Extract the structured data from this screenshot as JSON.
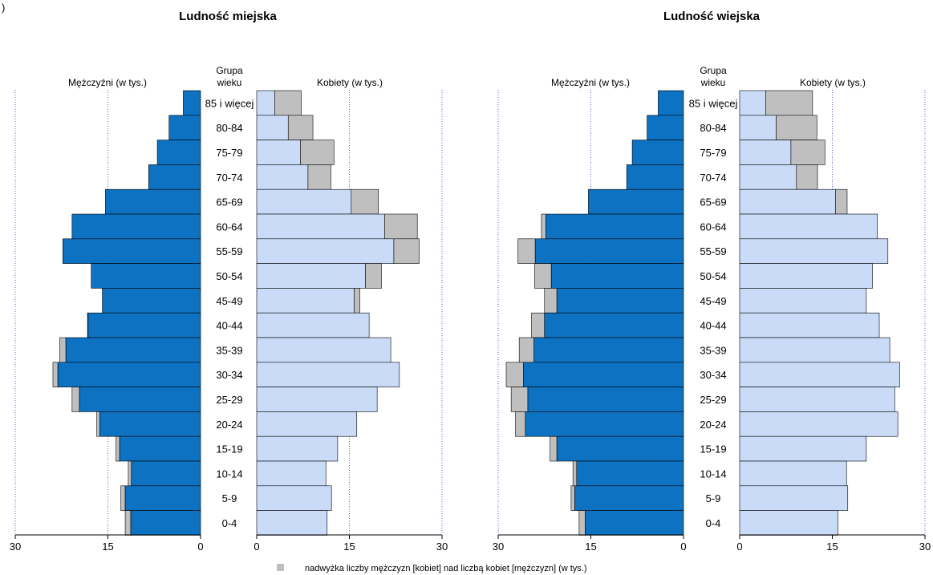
{
  "figure_label": ")",
  "chart_data": [
    {
      "type": "bar",
      "subtype": "population-pyramid",
      "title": "Ludność miejska",
      "age_header": "Grupa wieku",
      "left_label": "Mężczyźni (w tys.)",
      "right_label": "Kobiety (w tys.)",
      "ticks": [
        30,
        15,
        0
      ],
      "right_ticks": [
        0,
        15,
        30
      ],
      "xlim": [
        0,
        30
      ],
      "grid": "dotted-vertical",
      "categories": [
        "85 i więcej",
        "80-84",
        "75-79",
        "70-74",
        "65-69",
        "60-64",
        "55-59",
        "50-54",
        "45-49",
        "40-44",
        "35-39",
        "30-34",
        "25-29",
        "20-24",
        "15-19",
        "10-14",
        "5-9",
        "0-4"
      ],
      "series": [
        {
          "name": "Mężczyźni",
          "values": [
            2.8,
            5.1,
            7.0,
            8.4,
            15.4,
            20.8,
            22.3,
            17.7,
            15.9,
            18.2,
            21.8,
            23.1,
            19.6,
            16.3,
            13.1,
            11.2,
            12.2,
            11.3
          ]
        },
        {
          "name": "Kobiety",
          "values": [
            2.9,
            5.1,
            7.1,
            8.3,
            15.3,
            20.7,
            22.2,
            17.6,
            15.8,
            18.2,
            21.7,
            23.1,
            19.5,
            16.2,
            13.1,
            11.2,
            12.1,
            11.4
          ]
        },
        {
          "name": "nadwyżka mężczyzn",
          "values": [
            0,
            0,
            0,
            0,
            0,
            0,
            0,
            0,
            0,
            0.1,
            1.0,
            0.8,
            1.2,
            0.5,
            0.6,
            0.5,
            0.7,
            0.9
          ]
        },
        {
          "name": "nadwyżka kobiet",
          "values": [
            4.3,
            4.0,
            5.4,
            3.7,
            4.4,
            5.3,
            4.1,
            2.6,
            0.9,
            0,
            0,
            0,
            0,
            0,
            0,
            0,
            0,
            0
          ]
        }
      ]
    },
    {
      "type": "bar",
      "subtype": "population-pyramid",
      "title": "Ludność wiejska",
      "age_header": "Grupa wieku",
      "left_label": "Mężczyźni (w tys.)",
      "right_label": "Kobiety (w tys.)",
      "ticks": [
        30,
        15,
        0
      ],
      "right_ticks": [
        0,
        15,
        30
      ],
      "xlim": [
        0,
        30
      ],
      "grid": "dotted-vertical",
      "categories": [
        "85 i więcej",
        "80-84",
        "75-79",
        "70-74",
        "65-69",
        "60-64",
        "55-59",
        "50-54",
        "45-49",
        "40-44",
        "35-39",
        "30-34",
        "25-29",
        "20-24",
        "15-19",
        "10-14",
        "5-9",
        "0-4"
      ],
      "series": [
        {
          "name": "Mężczyźni",
          "values": [
            4.1,
            5.9,
            8.3,
            9.2,
            15.4,
            22.3,
            24.0,
            21.4,
            20.5,
            22.5,
            24.2,
            25.9,
            25.2,
            25.6,
            20.5,
            17.3,
            17.6,
            15.9
          ]
        },
        {
          "name": "Kobiety",
          "values": [
            4.2,
            5.9,
            8.3,
            9.2,
            15.5,
            22.3,
            24.0,
            21.5,
            20.5,
            22.6,
            24.3,
            25.9,
            25.1,
            25.6,
            20.5,
            17.3,
            17.5,
            15.9
          ]
        },
        {
          "name": "nadwyżka mężczyzn",
          "values": [
            0,
            0,
            0,
            0,
            0,
            0.7,
            2.8,
            2.7,
            2.0,
            2.1,
            2.4,
            2.8,
            2.7,
            1.6,
            1.1,
            0.6,
            0.6,
            1.0
          ]
        },
        {
          "name": "nadwyżka kobiet",
          "values": [
            7.6,
            6.6,
            5.5,
            3.4,
            1.9,
            0,
            0,
            0,
            0,
            0,
            0,
            0,
            0,
            0,
            0,
            0,
            0,
            0
          ]
        }
      ]
    }
  ],
  "legend": {
    "text": "nadwyżka liczby mężczyzn [kobiet] nad liczbą kobiet [mężczyzn] (w tys.)",
    "color": "#bfbfbf"
  },
  "colors": {
    "male": "#0d72c1",
    "female": "#c9dbf7",
    "surplus": "#bfbfbf",
    "grid": "#5b5bd6",
    "stroke": "#000000"
  }
}
